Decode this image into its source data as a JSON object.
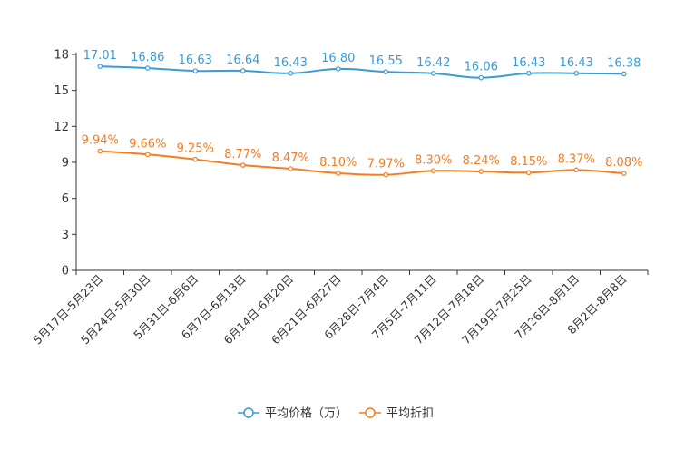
{
  "chart_data": {
    "type": "line",
    "categories": [
      "5月17日-5月23日",
      "5月24日-5月30日",
      "5月31日-6月6日",
      "6月7日-6月13日",
      "6月14日-6月20日",
      "6月21日-6月27日",
      "6月28日-7月4日",
      "7月5日-7月11日",
      "7月12日-7月18日",
      "7月19日-7月25日",
      "7月26日-8月1日",
      "8月2日-8月8日"
    ],
    "ylim": [
      0,
      18
    ],
    "yticks": [
      "0",
      "3",
      "6",
      "9",
      "12",
      "15",
      "18"
    ],
    "series": [
      {
        "name": "平均价格（万）",
        "color": "#3a9bd5",
        "values": [
          17.01,
          16.86,
          16.63,
          16.64,
          16.43,
          16.8,
          16.55,
          16.42,
          16.06,
          16.43,
          16.43,
          16.38
        ],
        "labels": [
          "17.01",
          "16.86",
          "16.63",
          "16.64",
          "16.43",
          "16.80",
          "16.55",
          "16.42",
          "16.06",
          "16.43",
          "16.43",
          "16.38"
        ]
      },
      {
        "name": "平均折扣",
        "color": "#f57c1f",
        "values": [
          9.94,
          9.66,
          9.25,
          8.77,
          8.47,
          8.1,
          7.97,
          8.3,
          8.24,
          8.15,
          8.37,
          8.08
        ],
        "labels": [
          "9.94%",
          "9.66%",
          "9.25%",
          "8.77%",
          "8.47%",
          "8.10%",
          "7.97%",
          "8.30%",
          "8.24%",
          "8.15%",
          "8.37%",
          "8.08%"
        ]
      }
    ]
  }
}
